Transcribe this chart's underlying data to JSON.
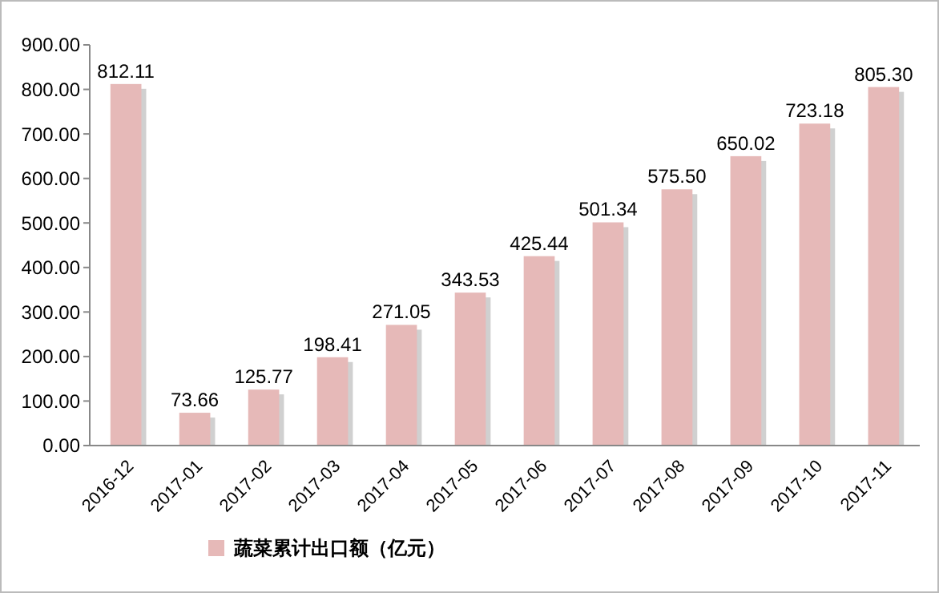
{
  "chart_data": {
    "type": "bar",
    "categories": [
      "2016-12",
      "2017-01",
      "2017-02",
      "2017-03",
      "2017-04",
      "2017-05",
      "2017-06",
      "2017-07",
      "2017-08",
      "2017-09",
      "2017-10",
      "2017-11"
    ],
    "series": [
      {
        "name": "蔬菜累计出口额（亿元）",
        "color": "#e6b9b8",
        "values": [
          812.11,
          73.66,
          125.77,
          198.41,
          271.05,
          343.53,
          425.44,
          501.34,
          575.5,
          650.02,
          723.18,
          805.3
        ]
      }
    ],
    "value_labels": [
      "812.11",
      "73.66",
      "125.77",
      "198.41",
      "271.05",
      "343.53",
      "425.44",
      "501.34",
      "575.50",
      "650.02",
      "723.18",
      "805.30"
    ],
    "ylim": [
      0,
      900
    ],
    "yticks": [
      {
        "value": 0,
        "label": "0.00"
      },
      {
        "value": 100,
        "label": "100.00"
      },
      {
        "value": 200,
        "label": "200.00"
      },
      {
        "value": 300,
        "label": "300.00"
      },
      {
        "value": 400,
        "label": "400.00"
      },
      {
        "value": 500,
        "label": "500.00"
      },
      {
        "value": 600,
        "label": "600.00"
      },
      {
        "value": 700,
        "label": "700.00"
      },
      {
        "value": 800,
        "label": "800.00"
      },
      {
        "value": 900,
        "label": "900.00"
      }
    ],
    "legend": "bottom",
    "grid": false
  }
}
